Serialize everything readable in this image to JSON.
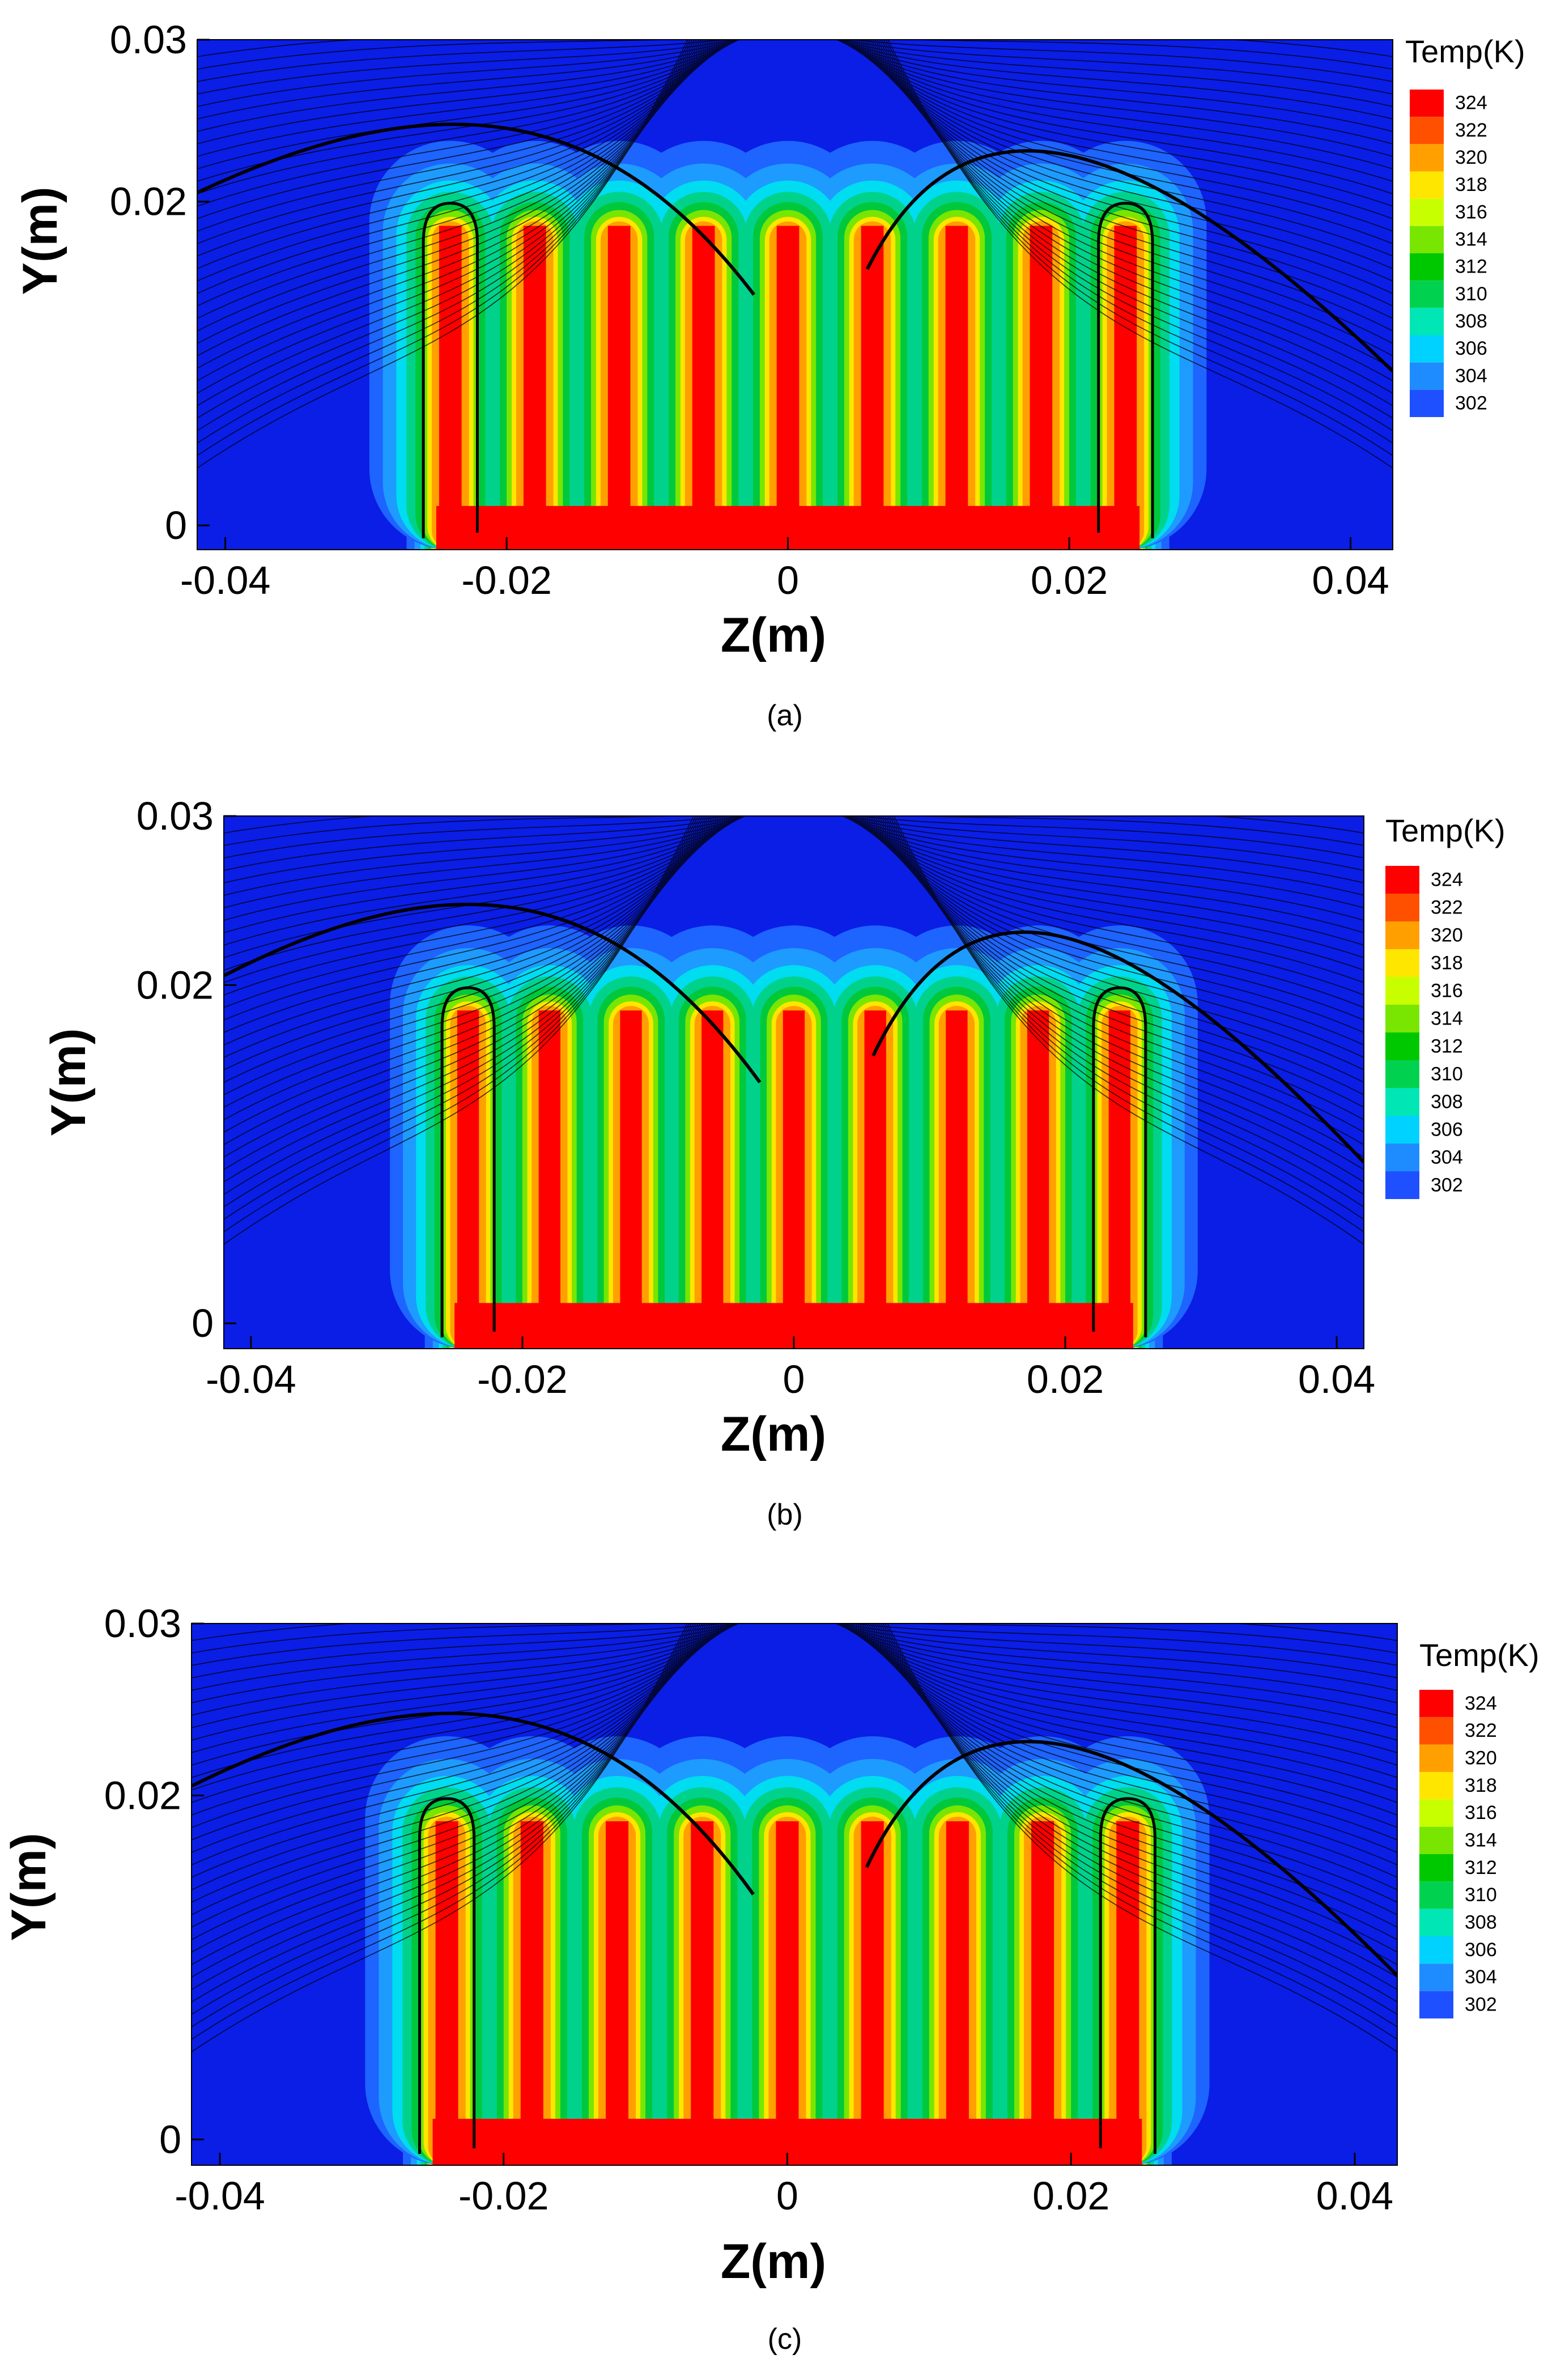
{
  "colors": {
    "background": "#0a1ee6",
    "fin_core": "#ff0000",
    "streamline": "#000000",
    "levels": [
      "#0a1ee6",
      "#1e50ff",
      "#1e8cff",
      "#00d2ff",
      "#00e6b4",
      "#00d250",
      "#00c800",
      "#78e600",
      "#c8ff00",
      "#ffe600",
      "#ffa000",
      "#ff5000",
      "#ff0000"
    ]
  },
  "chart_data": [
    {
      "type": "contour",
      "panel_label": "(a)",
      "xlabel": "Z(m)",
      "ylabel": "Y(m)",
      "xlim": [
        -0.042,
        0.043
      ],
      "ylim": [
        -0.0015,
        0.03
      ],
      "xticks": [
        "-0.04",
        "-0.02",
        "0",
        "0.02",
        "0.04"
      ],
      "xtick_values": [
        -0.04,
        -0.02,
        0,
        0.02,
        0.04
      ],
      "yticks": [
        "0.03",
        "0.02",
        "0"
      ],
      "ytick_values": [
        0.03,
        0.02,
        0
      ],
      "legend_title": "Temp(K)",
      "legend_levels": [
        "324",
        "322",
        "320",
        "318",
        "316",
        "314",
        "312",
        "310",
        "308",
        "306",
        "304",
        "302"
      ],
      "fin_centers": [
        -0.024,
        -0.018,
        -0.012,
        -0.006,
        0,
        0.006,
        0.012,
        0.018,
        0.024
      ],
      "fin_top": 0.0185,
      "base_extent": [
        -0.025,
        0.025
      ]
    },
    {
      "type": "contour",
      "panel_label": "(b)",
      "xlabel": "Z(m)",
      "ylabel": "Y(m)",
      "xlim": [
        -0.042,
        0.042
      ],
      "ylim": [
        -0.0015,
        0.03
      ],
      "xticks": [
        "-0.04",
        "-0.02",
        "0",
        "0.02",
        "0.04"
      ],
      "xtick_values": [
        -0.04,
        -0.02,
        0,
        0.02,
        0.04
      ],
      "yticks": [
        "0.03",
        "0.02",
        "0"
      ],
      "ytick_values": [
        0.03,
        0.02,
        0
      ],
      "legend_title": "Temp(K)",
      "legend_levels": [
        "324",
        "322",
        "320",
        "318",
        "316",
        "314",
        "312",
        "310",
        "308",
        "306",
        "304",
        "302"
      ],
      "fin_centers": [
        -0.024,
        -0.018,
        -0.012,
        -0.006,
        0,
        0.006,
        0.012,
        0.018,
        0.024
      ],
      "fin_top": 0.0185,
      "base_extent": [
        -0.025,
        0.025
      ]
    },
    {
      "type": "contour",
      "panel_label": "(c)",
      "xlabel": "Z(m)",
      "ylabel": "Y(m)",
      "xlim": [
        -0.042,
        0.043
      ],
      "ylim": [
        -0.0015,
        0.03
      ],
      "xticks": [
        "-0.04",
        "-0.02",
        "0",
        "0.02",
        "0.04"
      ],
      "xtick_values": [
        -0.04,
        -0.02,
        0,
        0.02,
        0.04
      ],
      "yticks": [
        "0.03",
        "0.02",
        "0"
      ],
      "ytick_values": [
        0.03,
        0.02,
        0
      ],
      "legend_title": "Temp(K)",
      "legend_levels": [
        "324",
        "322",
        "320",
        "318",
        "316",
        "314",
        "312",
        "310",
        "308",
        "306",
        "304",
        "302"
      ],
      "fin_centers": [
        -0.024,
        -0.018,
        -0.012,
        -0.006,
        0,
        0.006,
        0.012,
        0.018,
        0.024
      ],
      "fin_top": 0.0185,
      "base_extent": [
        -0.025,
        0.025
      ]
    }
  ]
}
